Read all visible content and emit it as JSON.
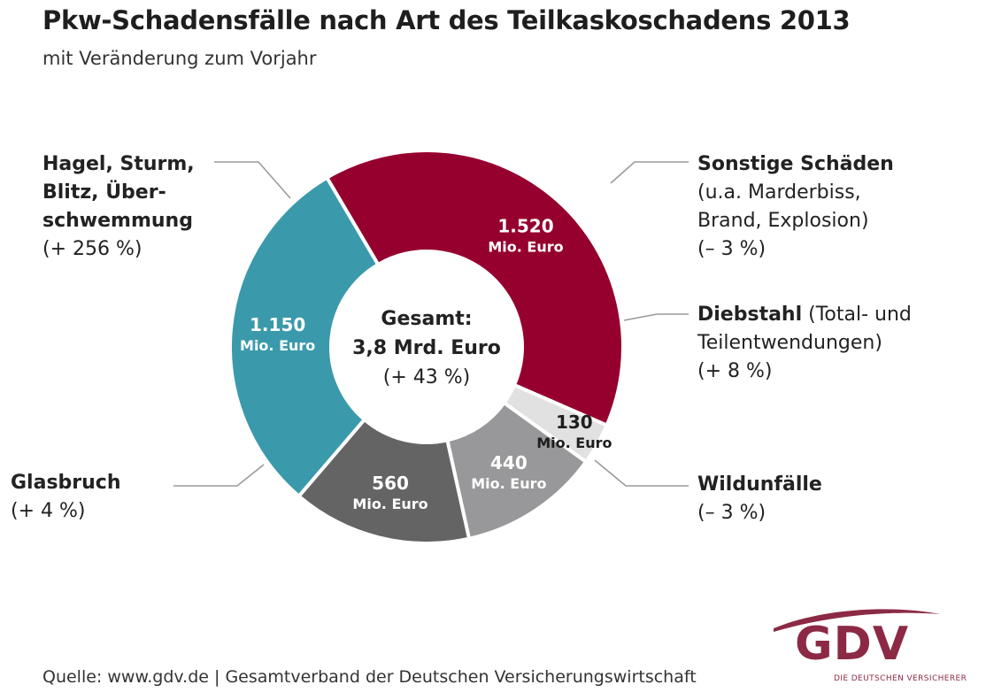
{
  "title": "Pkw-Schadensfälle nach Art des Teilkaskoschadens 2013",
  "subtitle": "mit Veränderung zum Vorjahr",
  "center": {
    "line1": "Gesamt:",
    "line2": "3,8 Mrd. Euro",
    "line3": "(+ 43 %)"
  },
  "chart_data": {
    "type": "pie",
    "variant": "donut",
    "title": "Pkw-Schadensfälle nach Art des Teilkaskoschadens 2013",
    "unit": "Mio. Euro",
    "total_label": "3,8 Mrd. Euro",
    "total_change": "(+ 43 %)",
    "slices": [
      {
        "name": "Hagel, Sturm, Blitz, Überschwemmung",
        "value": 1520,
        "value_label": "1.520",
        "change": "(+ 256 %)",
        "color": "#96002f",
        "text_color": "#ffffff"
      },
      {
        "name": "Sonstige Schäden (u.a. Marderbiss, Brand, Explosion)",
        "value": 130,
        "value_label": "130",
        "change": "(– 3 %)",
        "color": "#e1e1e1",
        "text_color": "#1e1e1e"
      },
      {
        "name": "Diebstahl (Total- und Teilentwendungen)",
        "value": 440,
        "value_label": "440",
        "change": "(+ 8 %)",
        "color": "#98989a",
        "text_color": "#ffffff"
      },
      {
        "name": "Wildunfälle",
        "value": 560,
        "value_label": "560",
        "change": "(– 3 %)",
        "color": "#646464",
        "text_color": "#ffffff"
      },
      {
        "name": "Glasbruch",
        "value": 1150,
        "value_label": "1.150",
        "change": "(+ 4 %)",
        "color": "#3a9aab",
        "text_color": "#ffffff"
      }
    ]
  },
  "labels": {
    "hagel": {
      "lines": [
        "Hagel, Sturm,",
        "Blitz, Über-",
        "schwemmung"
      ],
      "change": "(+ 256 %)"
    },
    "sonstige": {
      "name": "Sonstige Schäden",
      "lines": [
        "(u.a. Marderbiss,",
        "Brand, Explosion)"
      ],
      "change": "(– 3 %)"
    },
    "diebstahl": {
      "name": "Diebstahl",
      "name_rest": " (Total- und",
      "line2": "Teilentwendungen)",
      "change": "(+ 8 %)"
    },
    "wild": {
      "name": "Wildunfälle",
      "change": "(– 3 %)"
    },
    "glas": {
      "name": "Glasbruch",
      "change": "(+ 4 %)"
    }
  },
  "source": "Quelle: www.gdv.de | Gesamtverband der Deutschen Versicherungswirtschaft",
  "logo": {
    "text": "GDV",
    "sub": "DIE DEUTSCHEN VERSICHERER",
    "color": "#8c2a45"
  }
}
